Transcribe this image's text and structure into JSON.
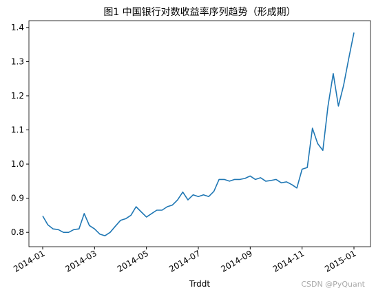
{
  "chart_data": {
    "type": "line",
    "title": "图1 中国银行对数收益率序列趋势（形成期）",
    "x_label": "Trddt",
    "watermark": "CSDN @PyQuant",
    "x": [
      "2014-01",
      null,
      null,
      null,
      null,
      null,
      null,
      null,
      null,
      null,
      "2014-03",
      null,
      null,
      null,
      null,
      null,
      null,
      null,
      null,
      null,
      "2014-05",
      null,
      null,
      null,
      null,
      null,
      null,
      null,
      null,
      null,
      "2014-07",
      null,
      null,
      null,
      null,
      null,
      null,
      null,
      null,
      null,
      "2014-09",
      null,
      null,
      null,
      null,
      null,
      null,
      null,
      null,
      null,
      "2014-11",
      null,
      null,
      null,
      null,
      null,
      null,
      null,
      null,
      null,
      "2015-01"
    ],
    "series": [
      {
        "color": "#1f77b4",
        "values": [
          0.848,
          0.822,
          0.81,
          0.808,
          0.8,
          0.8,
          0.808,
          0.81,
          0.855,
          0.82,
          0.81,
          0.795,
          0.79,
          0.8,
          0.818,
          0.835,
          0.84,
          0.85,
          0.875,
          0.86,
          0.845,
          0.855,
          0.865,
          0.865,
          0.875,
          0.88,
          0.895,
          0.918,
          0.895,
          0.91,
          0.905,
          0.91,
          0.905,
          0.92,
          0.955,
          0.955,
          0.95,
          0.955,
          0.955,
          0.958,
          0.965,
          0.955,
          0.96,
          0.95,
          0.952,
          0.955,
          0.945,
          0.948,
          0.94,
          0.93,
          0.985,
          0.99,
          1.105,
          1.06,
          1.04,
          1.17,
          1.265,
          1.17,
          1.23,
          1.31,
          1.385
        ]
      }
    ],
    "ylim": [
      0.758,
      1.42
    ],
    "yticks": [
      0.8,
      0.9,
      {
        "value": 1,
        "label": "1.0"
      },
      1.1,
      1.2,
      1.3,
      1.4
    ]
  }
}
